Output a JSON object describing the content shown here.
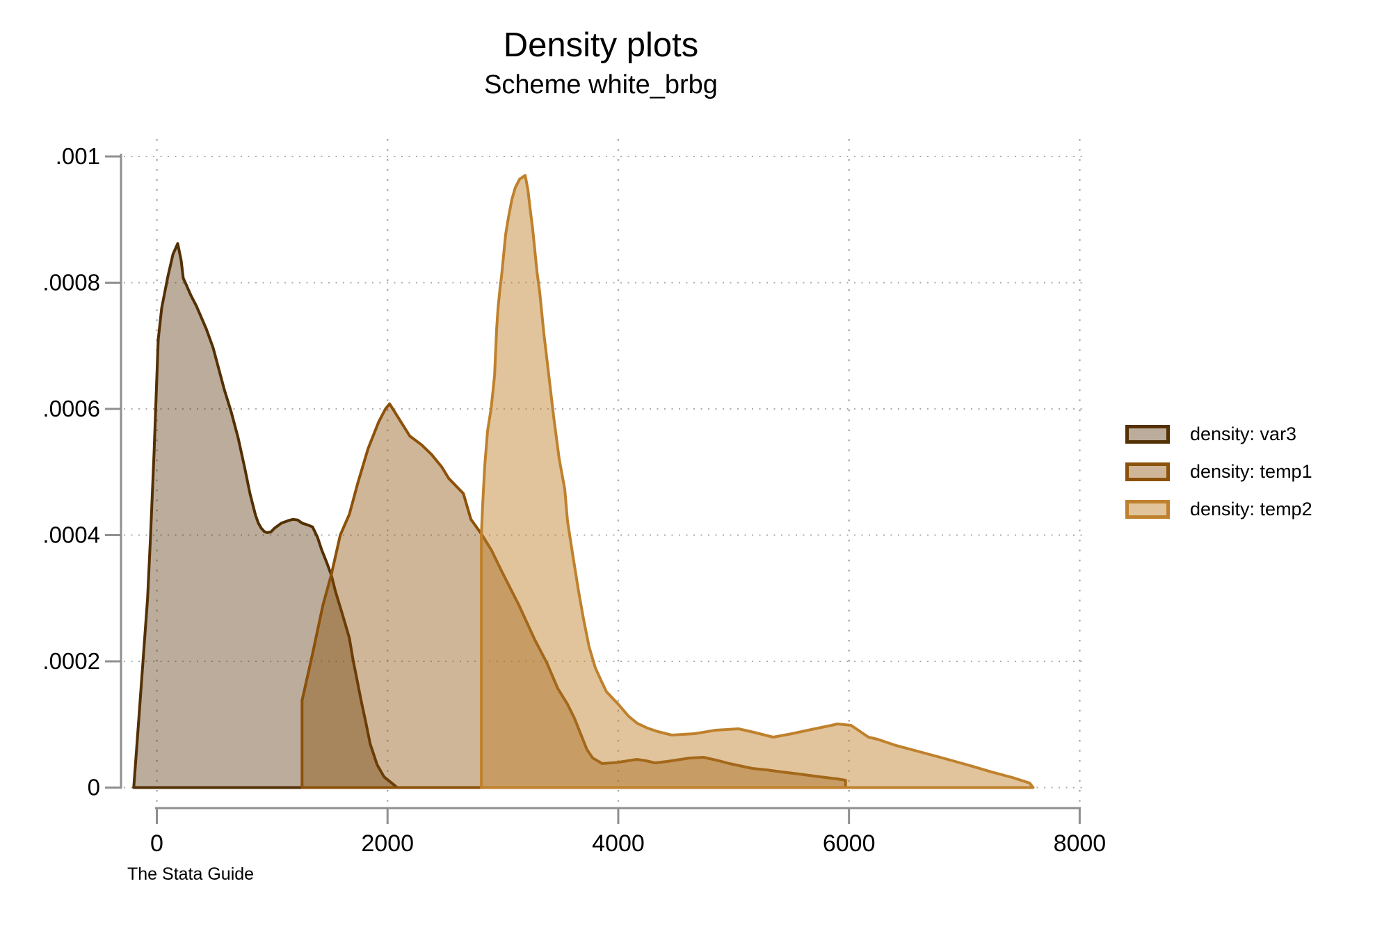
{
  "title": "Density plots",
  "subtitle": "Scheme white_brbg",
  "footer": "The Stata Guide",
  "colors": {
    "axis": "#8f8f8f",
    "grid": "#ababab",
    "text": "#000000",
    "background": "#ffffff"
  },
  "legend": {
    "position": "right",
    "items": [
      "density: var3",
      "density: temp1",
      "density: temp2"
    ]
  },
  "chart_data": {
    "type": "area",
    "title": "Density plots",
    "subtitle": "Scheme white_brbg",
    "xlabel": "",
    "ylabel": "",
    "xlim": [
      0,
      8000
    ],
    "ylim": [
      0,
      0.001
    ],
    "x_ticks": [
      0,
      2000,
      4000,
      6000,
      8000
    ],
    "x_tick_labels": [
      "0",
      "2000",
      "4000",
      "6000",
      "8000"
    ],
    "y_ticks": [
      0,
      0.0002,
      0.0004,
      0.0006,
      0.0008,
      0.001
    ],
    "y_tick_labels": [
      "0",
      ".0002",
      ".0004",
      ".0006",
      ".0008",
      ".001"
    ],
    "grid": "dotted",
    "legend_position": "right",
    "series": [
      {
        "name": "density: var3",
        "color": "#543005",
        "fill_opacity": 0.4,
        "points": [
          [
            -200,
            0
          ],
          [
            -160,
            0.0001
          ],
          [
            -120,
            0.0002
          ],
          [
            -80,
            0.0003
          ],
          [
            -54,
            0.0004
          ],
          [
            -24,
            0.00053
          ],
          [
            12,
            0.00071
          ],
          [
            42,
            0.00076
          ],
          [
            96,
            0.00081
          ],
          [
            140,
            0.000845
          ],
          [
            181,
            0.000862
          ],
          [
            211,
            0.000835
          ],
          [
            229,
            0.000807
          ],
          [
            247,
            0.0008
          ],
          [
            295,
            0.00078
          ],
          [
            343,
            0.000763
          ],
          [
            428,
            0.000727
          ],
          [
            488,
            0.000697
          ],
          [
            536,
            0.000664
          ],
          [
            584,
            0.000631
          ],
          [
            645,
            0.000595
          ],
          [
            705,
            0.000554
          ],
          [
            760,
            0.000508
          ],
          [
            807,
            0.000466
          ],
          [
            855,
            0.000432
          ],
          [
            880,
            0.000419
          ],
          [
            905,
            0.000411
          ],
          [
            930,
            0.000406
          ],
          [
            955,
            0.000404
          ],
          [
            988,
            0.000405
          ],
          [
            1020,
            0.000411
          ],
          [
            1080,
            0.000419
          ],
          [
            1140,
            0.000423
          ],
          [
            1180,
            0.000425
          ],
          [
            1220,
            0.000424
          ],
          [
            1260,
            0.000419
          ],
          [
            1310,
            0.000416
          ],
          [
            1350,
            0.000413
          ],
          [
            1392,
            0.000397
          ],
          [
            1428,
            0.000377
          ],
          [
            1470,
            0.000358
          ],
          [
            1512,
            0.000337
          ],
          [
            1548,
            0.000311
          ],
          [
            1608,
            0.000275
          ],
          [
            1669,
            0.000237
          ],
          [
            1700,
            0.000203
          ],
          [
            1730,
            0.000176
          ],
          [
            1771,
            0.000138
          ],
          [
            1813,
            0.000102
          ],
          [
            1850,
            6.9e-05
          ],
          [
            1910,
            3.6e-05
          ],
          [
            1970,
            1.7e-05
          ],
          [
            2030,
            8e-06
          ],
          [
            2085,
            0
          ]
        ]
      },
      {
        "name": "density: temp1",
        "color": "#8c510a",
        "fill_opacity": 0.42,
        "points": [
          [
            1259,
            0
          ],
          [
            1259,
            0.000138
          ],
          [
            1350,
            0.000212
          ],
          [
            1440,
            0.000289
          ],
          [
            1512,
            0.000337
          ],
          [
            1590,
            0.0004
          ],
          [
            1669,
            0.000433
          ],
          [
            1741,
            0.000482
          ],
          [
            1831,
            0.000537
          ],
          [
            1922,
            0.000579
          ],
          [
            1982,
            0.0006
          ],
          [
            2018,
            0.000608
          ],
          [
            2090,
            0.000587
          ],
          [
            2193,
            0.000557
          ],
          [
            2295,
            0.000543
          ],
          [
            2380,
            0.000528
          ],
          [
            2470,
            0.000508
          ],
          [
            2530,
            0.00049
          ],
          [
            2657,
            0.000466
          ],
          [
            2723,
            0.000425
          ],
          [
            2813,
            0.000402
          ],
          [
            2898,
            0.000377
          ],
          [
            2994,
            0.000341
          ],
          [
            3139,
            0.000289
          ],
          [
            3277,
            0.000234
          ],
          [
            3380,
            0.000198
          ],
          [
            3476,
            0.000157
          ],
          [
            3560,
            0.000132
          ],
          [
            3620,
            0.00011
          ],
          [
            3681,
            8.2e-05
          ],
          [
            3729,
            6e-05
          ],
          [
            3777,
            4.7e-05
          ],
          [
            3861,
            3.8e-05
          ],
          [
            4000,
            4e-05
          ],
          [
            4120,
            4.35e-05
          ],
          [
            4163,
            4.46e-05
          ],
          [
            4241,
            4.24e-05
          ],
          [
            4319,
            3.91e-05
          ],
          [
            4422,
            4.13e-05
          ],
          [
            4620,
            4.68e-05
          ],
          [
            4741,
            4.79e-05
          ],
          [
            4873,
            4.24e-05
          ],
          [
            4964,
            3.8e-05
          ],
          [
            5163,
            3.03e-05
          ],
          [
            5283,
            2.81e-05
          ],
          [
            5416,
            2.48e-05
          ],
          [
            5566,
            2.15e-05
          ],
          [
            5747,
            1.71e-05
          ],
          [
            5898,
            1.38e-05
          ],
          [
            5970,
            1.16e-05
          ],
          [
            5970,
            0
          ]
        ]
      },
      {
        "name": "density: temp2",
        "color": "#bf812d",
        "fill_opacity": 0.47,
        "points": [
          [
            2813,
            0
          ],
          [
            2813,
            0.0004
          ],
          [
            2825,
            0.000451
          ],
          [
            2843,
            0.00051
          ],
          [
            2867,
            0.000565
          ],
          [
            2898,
            0.000601
          ],
          [
            2928,
            0.000653
          ],
          [
            2946,
            0.000727
          ],
          [
            2958,
            0.00076
          ],
          [
            2976,
            0.000793
          ],
          [
            2988,
            0.00081
          ],
          [
            3006,
            0.000844
          ],
          [
            3024,
            0.000877
          ],
          [
            3048,
            0.000903
          ],
          [
            3078,
            0.000932
          ],
          [
            3108,
            0.000951
          ],
          [
            3145,
            0.000964
          ],
          [
            3193,
            0.00097
          ],
          [
            3217,
            0.000947
          ],
          [
            3235,
            0.000918
          ],
          [
            3259,
            0.000884
          ],
          [
            3277,
            0.000851
          ],
          [
            3295,
            0.000818
          ],
          [
            3319,
            0.000785
          ],
          [
            3337,
            0.000752
          ],
          [
            3355,
            0.000719
          ],
          [
            3398,
            0.000653
          ],
          [
            3440,
            0.000587
          ],
          [
            3488,
            0.000521
          ],
          [
            3536,
            0.000473
          ],
          [
            3560,
            0.000422
          ],
          [
            3608,
            0.000366
          ],
          [
            3656,
            0.000311
          ],
          [
            3699,
            0.000267
          ],
          [
            3747,
            0.000223
          ],
          [
            3801,
            0.00019
          ],
          [
            3855,
            0.000168
          ],
          [
            3898,
            0.000152
          ],
          [
            4000,
            0.000132
          ],
          [
            4090,
            0.000113
          ],
          [
            4163,
            0.000102
          ],
          [
            4253,
            9.42e-05
          ],
          [
            4343,
            8.87e-05
          ],
          [
            4464,
            8.32e-05
          ],
          [
            4663,
            8.54e-05
          ],
          [
            4843,
            9.09e-05
          ],
          [
            5042,
            9.31e-05
          ],
          [
            5175,
            8.76e-05
          ],
          [
            5343,
            7.99e-05
          ],
          [
            5506,
            8.54e-05
          ],
          [
            5645,
            9.09e-05
          ],
          [
            5849,
            9.86e-05
          ],
          [
            5898,
            0.0001008
          ],
          [
            6018,
            9.86e-05
          ],
          [
            6169,
            7.99e-05
          ],
          [
            6247,
            7.66e-05
          ],
          [
            6410,
            6.66e-05
          ],
          [
            6590,
            5.78e-05
          ],
          [
            6813,
            4.68e-05
          ],
          [
            7030,
            3.58e-05
          ],
          [
            7235,
            2.48e-05
          ],
          [
            7416,
            1.6e-05
          ],
          [
            7566,
            7.2e-06
          ],
          [
            7596,
            0
          ]
        ]
      }
    ]
  }
}
